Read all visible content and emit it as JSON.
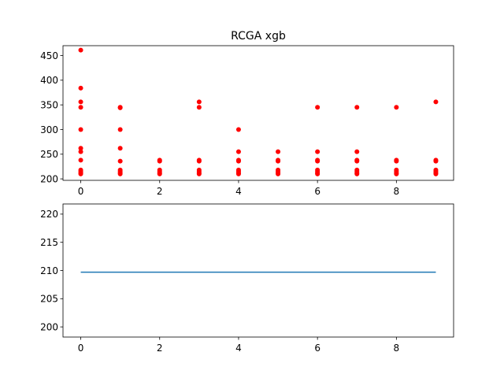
{
  "chart_data": [
    {
      "type": "scatter",
      "title": "RCGA xgb",
      "xlabel": "",
      "ylabel": "",
      "xlim": [
        -0.45,
        9.45
      ],
      "ylim": [
        197,
        470
      ],
      "xticks": [
        0,
        2,
        4,
        6,
        8
      ],
      "yticks": [
        200,
        250,
        300,
        350,
        400,
        450
      ],
      "grid": false,
      "marker_color": "#ff0000",
      "points": [
        {
          "x": 0,
          "y": 461
        },
        {
          "x": 0,
          "y": 384
        },
        {
          "x": 0,
          "y": 356
        },
        {
          "x": 0,
          "y": 345
        },
        {
          "x": 0,
          "y": 300
        },
        {
          "x": 0,
          "y": 262
        },
        {
          "x": 0,
          "y": 255
        },
        {
          "x": 0,
          "y": 238
        },
        {
          "x": 0,
          "y": 218
        },
        {
          "x": 0,
          "y": 215
        },
        {
          "x": 0,
          "y": 212
        },
        {
          "x": 0,
          "y": 210
        },
        {
          "x": 1,
          "y": 345
        },
        {
          "x": 1,
          "y": 344
        },
        {
          "x": 1,
          "y": 300
        },
        {
          "x": 1,
          "y": 262
        },
        {
          "x": 1,
          "y": 236
        },
        {
          "x": 1,
          "y": 218
        },
        {
          "x": 1,
          "y": 215
        },
        {
          "x": 1,
          "y": 212
        },
        {
          "x": 1,
          "y": 210
        },
        {
          "x": 2,
          "y": 238
        },
        {
          "x": 2,
          "y": 236
        },
        {
          "x": 2,
          "y": 218
        },
        {
          "x": 2,
          "y": 215
        },
        {
          "x": 2,
          "y": 212
        },
        {
          "x": 2,
          "y": 210
        },
        {
          "x": 3,
          "y": 356
        },
        {
          "x": 3,
          "y": 345
        },
        {
          "x": 3,
          "y": 238
        },
        {
          "x": 3,
          "y": 236
        },
        {
          "x": 3,
          "y": 218
        },
        {
          "x": 3,
          "y": 215
        },
        {
          "x": 3,
          "y": 212
        },
        {
          "x": 3,
          "y": 210
        },
        {
          "x": 4,
          "y": 300
        },
        {
          "x": 4,
          "y": 255
        },
        {
          "x": 4,
          "y": 238
        },
        {
          "x": 4,
          "y": 236
        },
        {
          "x": 4,
          "y": 218
        },
        {
          "x": 4,
          "y": 215
        },
        {
          "x": 4,
          "y": 212
        },
        {
          "x": 4,
          "y": 210
        },
        {
          "x": 5,
          "y": 255
        },
        {
          "x": 5,
          "y": 238
        },
        {
          "x": 5,
          "y": 236
        },
        {
          "x": 5,
          "y": 218
        },
        {
          "x": 5,
          "y": 215
        },
        {
          "x": 5,
          "y": 212
        },
        {
          "x": 5,
          "y": 210
        },
        {
          "x": 6,
          "y": 345
        },
        {
          "x": 6,
          "y": 255
        },
        {
          "x": 6,
          "y": 238
        },
        {
          "x": 6,
          "y": 236
        },
        {
          "x": 6,
          "y": 218
        },
        {
          "x": 6,
          "y": 215
        },
        {
          "x": 6,
          "y": 212
        },
        {
          "x": 6,
          "y": 210
        },
        {
          "x": 7,
          "y": 345
        },
        {
          "x": 7,
          "y": 255
        },
        {
          "x": 7,
          "y": 238
        },
        {
          "x": 7,
          "y": 236
        },
        {
          "x": 7,
          "y": 218
        },
        {
          "x": 7,
          "y": 215
        },
        {
          "x": 7,
          "y": 212
        },
        {
          "x": 7,
          "y": 210
        },
        {
          "x": 8,
          "y": 345
        },
        {
          "x": 8,
          "y": 238
        },
        {
          "x": 8,
          "y": 236
        },
        {
          "x": 8,
          "y": 218
        },
        {
          "x": 8,
          "y": 215
        },
        {
          "x": 8,
          "y": 212
        },
        {
          "x": 8,
          "y": 210
        },
        {
          "x": 9,
          "y": 356
        },
        {
          "x": 9,
          "y": 238
        },
        {
          "x": 9,
          "y": 236
        },
        {
          "x": 9,
          "y": 218
        },
        {
          "x": 9,
          "y": 215
        },
        {
          "x": 9,
          "y": 212
        },
        {
          "x": 9,
          "y": 210
        }
      ]
    },
    {
      "type": "line",
      "title": "",
      "xlabel": "",
      "ylabel": "",
      "xlim": [
        -0.45,
        9.45
      ],
      "ylim": [
        198.2,
        221.8
      ],
      "xticks": [
        0,
        2,
        4,
        6,
        8
      ],
      "yticks": [
        200,
        205,
        210,
        215,
        220
      ],
      "grid": false,
      "line_color": "#1f77b4",
      "x": [
        0,
        1,
        2,
        3,
        4,
        5,
        6,
        7,
        8,
        9
      ],
      "y": [
        209.7,
        209.7,
        209.7,
        209.7,
        209.7,
        209.7,
        209.7,
        209.7,
        209.7,
        209.7
      ]
    }
  ]
}
